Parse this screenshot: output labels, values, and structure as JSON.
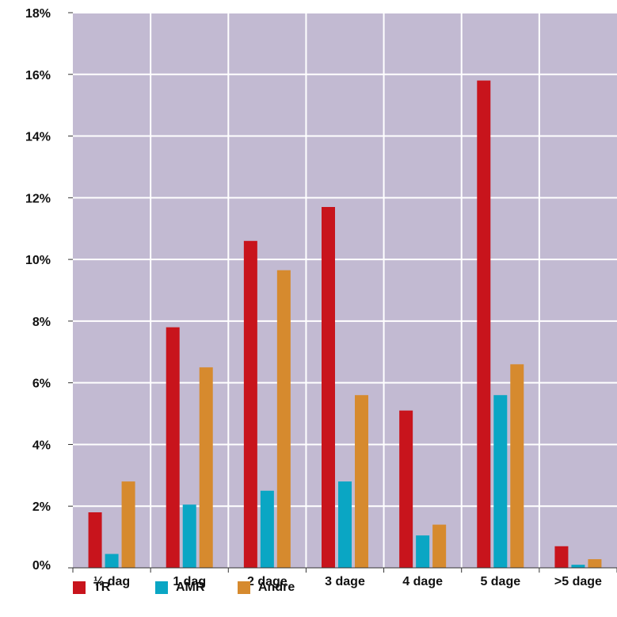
{
  "chart_data": {
    "type": "bar",
    "categories": [
      "½ dag",
      "1 dag",
      "2 dage",
      "3 dage",
      "4 dage",
      "5 dage",
      ">5 dage"
    ],
    "series": [
      {
        "name": "TR",
        "color": "#c8141c",
        "values": [
          1.8,
          7.8,
          10.6,
          11.7,
          5.1,
          15.8,
          0.7
        ]
      },
      {
        "name": "AMR",
        "color": "#0aa6c4",
        "values": [
          0.45,
          2.05,
          2.5,
          2.8,
          1.05,
          5.6,
          0.1
        ]
      },
      {
        "name": "Andre",
        "color": "#d68a2e",
        "values": [
          2.8,
          6.5,
          9.65,
          5.6,
          1.4,
          6.6,
          0.28
        ]
      }
    ],
    "ylim": [
      0,
      18
    ],
    "yticks": [
      "0%",
      "2%",
      "4%",
      "6%",
      "8%",
      "10%",
      "12%",
      "14%",
      "16%",
      "18%"
    ],
    "ytick_values": [
      0,
      2,
      4,
      6,
      8,
      10,
      12,
      14,
      16,
      18
    ],
    "plot_background": "#c2bad2",
    "grid": true,
    "legend_position": "bottom-left"
  }
}
